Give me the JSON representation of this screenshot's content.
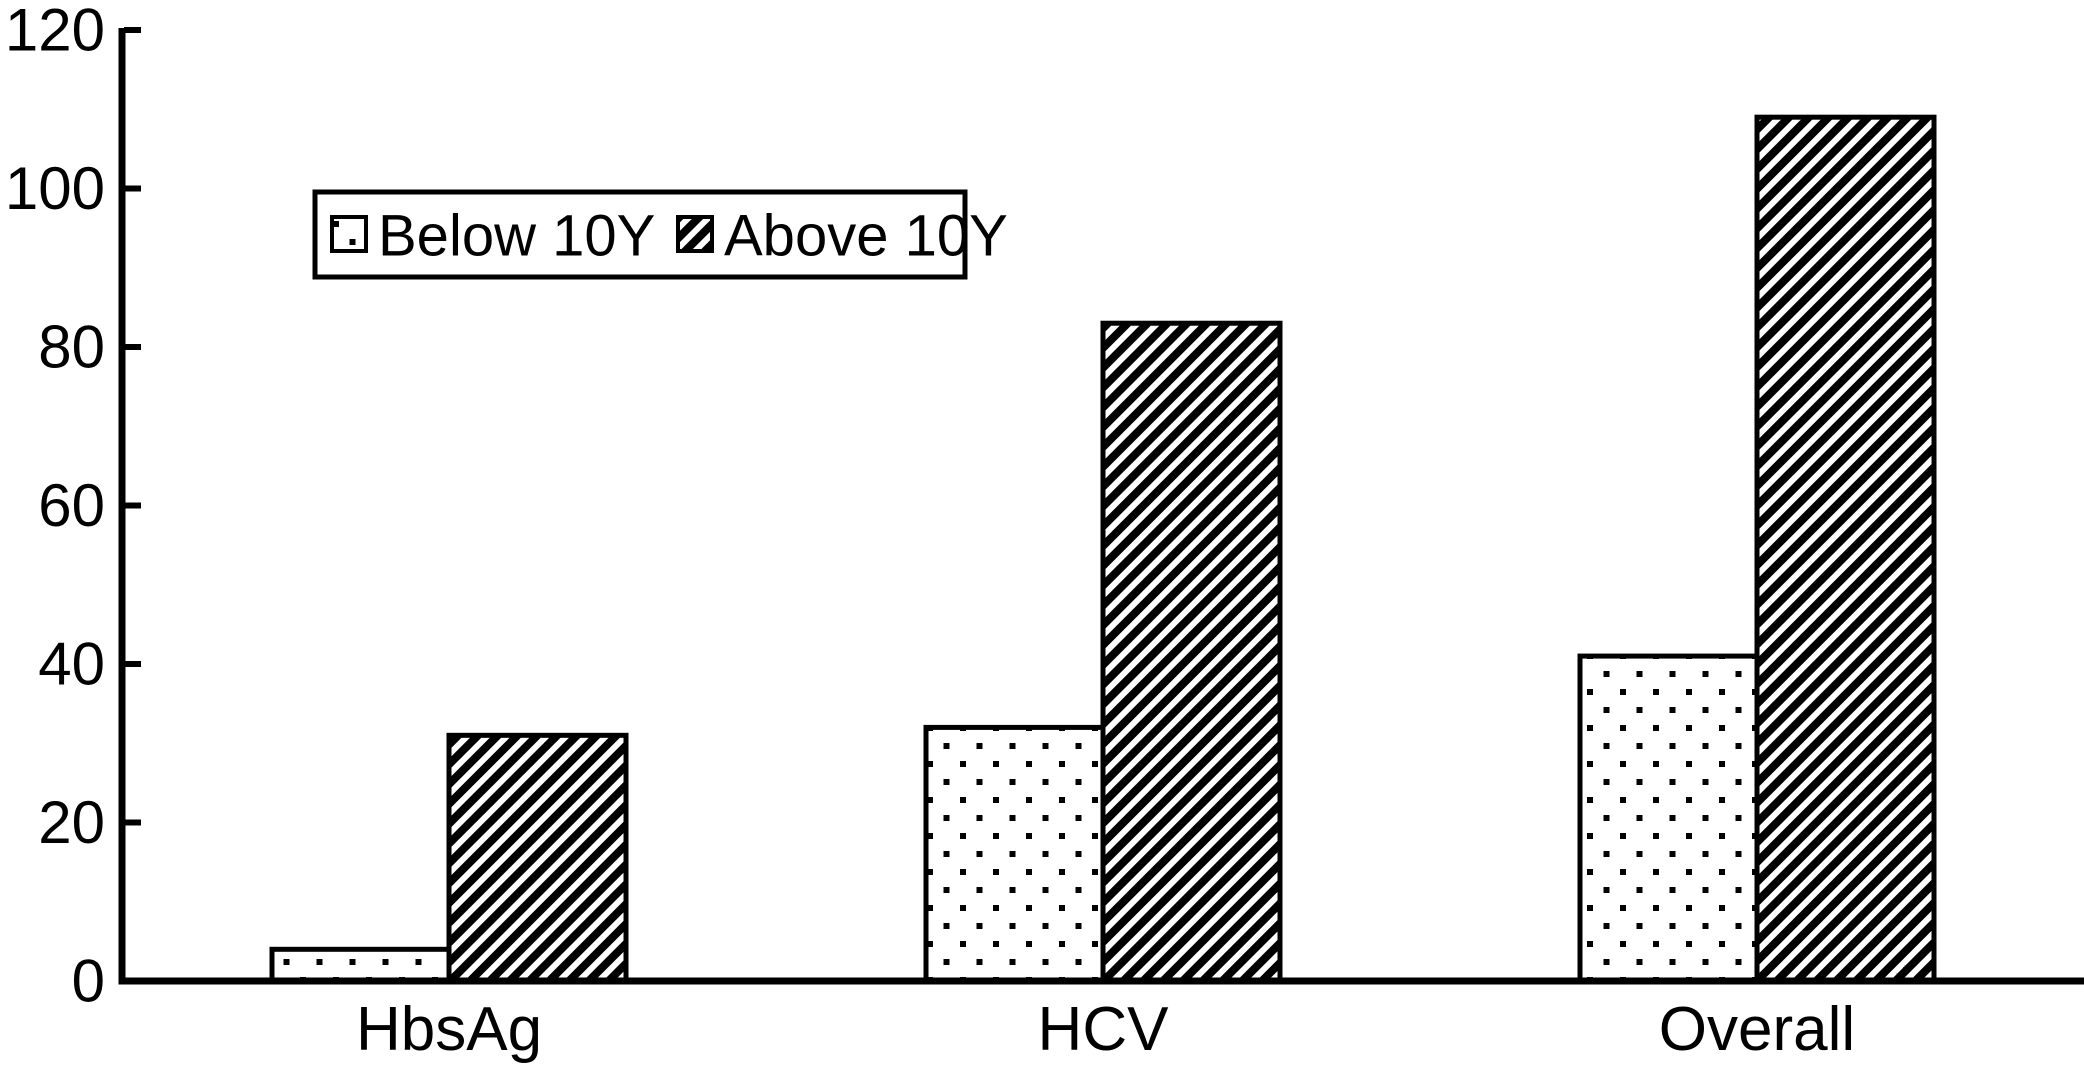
{
  "chart_data": {
    "type": "bar",
    "title": "",
    "xlabel": "",
    "ylabel": "",
    "categories": [
      "HbsAg",
      "HCV",
      "Overall"
    ],
    "series": [
      {
        "name": "Below 10Y",
        "pattern": "dots",
        "values": [
          4,
          32,
          41
        ]
      },
      {
        "name": "Above 10Y",
        "pattern": "diagonal-hatch",
        "values": [
          31,
          83,
          109
        ]
      }
    ],
    "ylim": [
      0,
      120
    ],
    "yticks": [
      0,
      20,
      40,
      60,
      80,
      100,
      120
    ],
    "grid": false,
    "legend_position": "top-left-inside",
    "colors": {
      "foreground": "#000000",
      "background": "#ffffff"
    }
  }
}
